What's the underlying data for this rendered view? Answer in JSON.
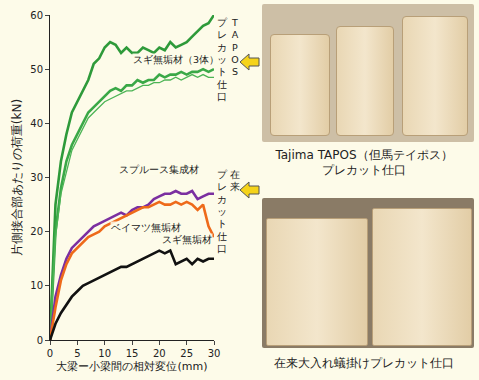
{
  "chart_data": {
    "type": "line",
    "xlabel": "大梁ー小梁間の相対変位(mm)",
    "ylabel": "片側接合部あたりの荷重(kN)",
    "x": [
      0,
      1,
      2,
      3,
      4,
      5,
      6,
      7,
      8,
      9,
      10,
      11,
      12,
      13,
      14,
      15,
      16,
      17,
      18,
      19,
      20,
      21,
      22,
      23,
      24,
      25,
      26,
      27,
      28,
      29,
      30
    ],
    "series": [
      {
        "color": "#2e9a3a",
        "line_style": "thick",
        "values": [
          0,
          25,
          33,
          38,
          42,
          44,
          46,
          48,
          51,
          52,
          54,
          55,
          54.5,
          53,
          54,
          53,
          53,
          54,
          53.5,
          53,
          54,
          53.5,
          55,
          54,
          54.5,
          55,
          56,
          57,
          58,
          58.5,
          60
        ]
      },
      {
        "color": "#3aa847",
        "line_style": "thick",
        "values": [
          0,
          20,
          28,
          33,
          36,
          38,
          40,
          42,
          43,
          44,
          45,
          46,
          46.5,
          46,
          47,
          47,
          48,
          47.5,
          48,
          48,
          49,
          48.5,
          49,
          49,
          49.5,
          49,
          49.5,
          49.5,
          50,
          49.5,
          50
        ]
      },
      {
        "color": "#4cb455",
        "line_style": "thin",
        "values": [
          0,
          19,
          27,
          31,
          35,
          37,
          39,
          41,
          42,
          43,
          44,
          44.5,
          45,
          45.5,
          46,
          46,
          46.5,
          47,
          47,
          47.5,
          47.5,
          48,
          48,
          48.5,
          48,
          48.5,
          49,
          48.5,
          49,
          48.5,
          48.5
        ]
      },
      {
        "color": "#7b2fa0",
        "line_style": "thick",
        "values": [
          0,
          8,
          12,
          15,
          17,
          18,
          19,
          20,
          21,
          21.5,
          22,
          22.5,
          23,
          23.5,
          23,
          24,
          24.5,
          24.5,
          25,
          26,
          26.5,
          27,
          27,
          27.5,
          27,
          27,
          27.5,
          26,
          26.5,
          27,
          27
        ]
      },
      {
        "color": "#ee6a1a",
        "line_style": "thick",
        "values": [
          0,
          6,
          11,
          14,
          16,
          17,
          18,
          19,
          19.5,
          20,
          21,
          21.5,
          22,
          22.5,
          23,
          23.5,
          24,
          24.5,
          24.5,
          25,
          25.5,
          25,
          25,
          25.5,
          25,
          25.5,
          25,
          24,
          25,
          21,
          19
        ]
      },
      {
        "color": "#111111",
        "line_style": "thick",
        "values": [
          0,
          3,
          5,
          6.5,
          8,
          9,
          10,
          10.5,
          11,
          11.5,
          12,
          12.5,
          13,
          13.5,
          13.5,
          14,
          14.5,
          15,
          15.5,
          16,
          16.5,
          16,
          16.5,
          14,
          14.5,
          15,
          14,
          15,
          14.5,
          15,
          15
        ]
      }
    ],
    "xlim": [
      0,
      30
    ],
    "xticks": [
      0,
      5,
      10,
      15,
      20,
      25,
      30
    ],
    "ylim": [
      0,
      60
    ],
    "yticks": [
      0,
      10,
      20,
      30,
      40,
      50,
      60
    ],
    "grid": false,
    "annotations": [
      {
        "text": "スギ無垢材（3体）",
        "x": 23,
        "y": 51.8
      },
      {
        "text": "スプルース集成材",
        "x": 20,
        "y": 31.5
      },
      {
        "text": "ベイマツ無垢材",
        "x": 17.5,
        "y": 20.8
      },
      {
        "text": "スギ無垢材",
        "x": 25,
        "y": 18.5
      }
    ],
    "group_labels": [
      {
        "lines": [
          "TAPOS",
          "プレカット仕口"
        ],
        "y": 60
      },
      {
        "lines": [
          "在来",
          "プレカット仕口"
        ],
        "y": 32
      }
    ]
  },
  "photos": [
    {
      "caption_lines": [
        "Tajima TAPOS（但馬テイポス）",
        "プレカット仕口"
      ]
    },
    {
      "caption_lines": [
        "在来大入れ蟻掛けプレカット仕口"
      ]
    }
  ]
}
